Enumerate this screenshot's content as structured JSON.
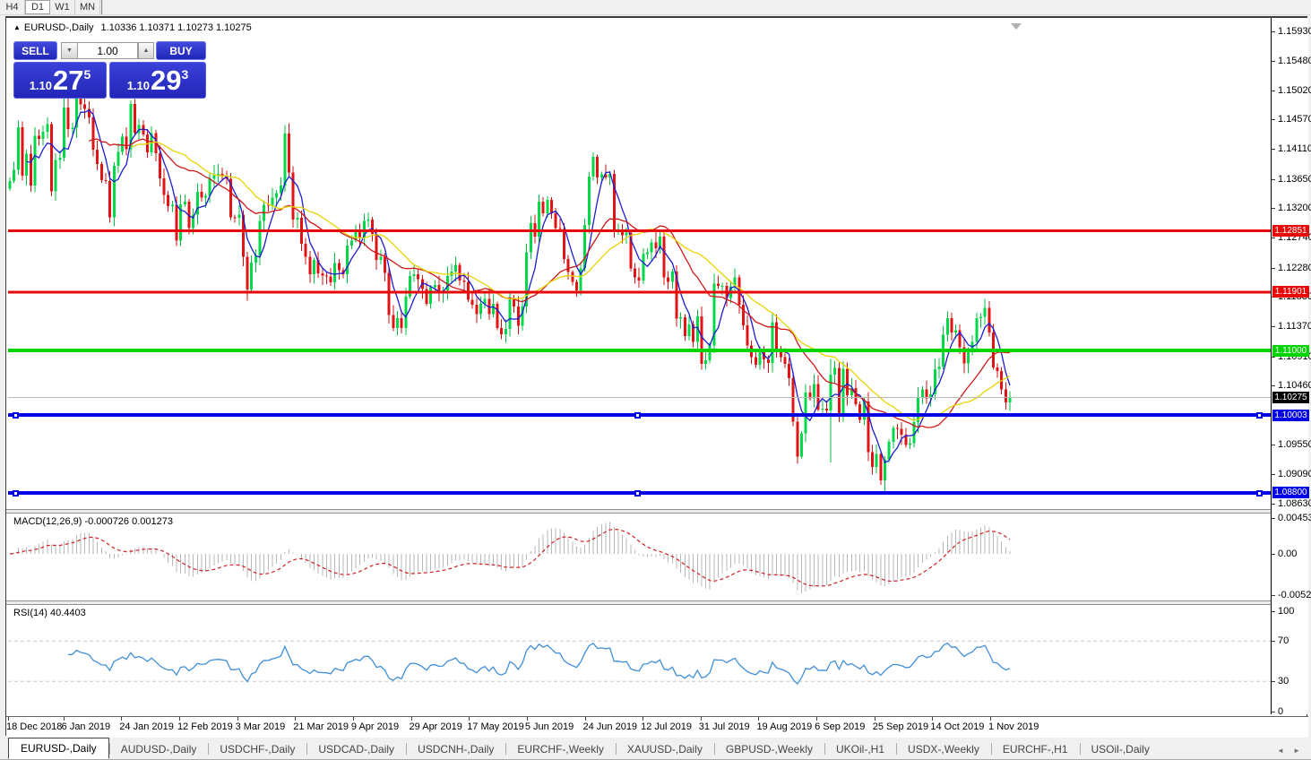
{
  "toolbar": {
    "timeframes": [
      {
        "label": "H4",
        "active": false
      },
      {
        "label": "D1",
        "active": true
      },
      {
        "label": "W1",
        "active": false
      },
      {
        "label": "MN",
        "active": false
      }
    ]
  },
  "chart": {
    "title": "EURUSD-,Daily",
    "ohlc": "1.10336 1.10371 1.10273 1.10275"
  },
  "trade": {
    "sell_label": "SELL",
    "buy_label": "BUY",
    "volume": "1.00",
    "spin_down": "▼",
    "spin_up": "▲",
    "sell_small": "1.10",
    "sell_big": "27",
    "sell_sup": "5",
    "buy_small": "1.10",
    "buy_big": "29",
    "buy_sup": "3"
  },
  "indicators": {
    "macd_label": "MACD(12,26,9) -0.000726 0.001273",
    "rsi_label": "RSI(14) 40.4403"
  },
  "tabs": [
    {
      "label": "EURUSD-,Daily",
      "active": true
    },
    {
      "label": "AUDUSD-,Daily",
      "active": false
    },
    {
      "label": "USDCHF-,Daily",
      "active": false
    },
    {
      "label": "USDCAD-,Daily",
      "active": false
    },
    {
      "label": "USDCNH-,Daily",
      "active": false
    },
    {
      "label": "EURCHF-,Weekly",
      "active": false
    },
    {
      "label": "XAUUSD-,Daily",
      "active": false
    },
    {
      "label": "GBPUSD-,Weekly",
      "active": false
    },
    {
      "label": "UKOil-,H1",
      "active": false
    },
    {
      "label": "USDX-,Weekly",
      "active": false
    },
    {
      "label": "EURCHF-,H1",
      "active": false
    },
    {
      "label": "USOil-,Daily",
      "active": false
    }
  ],
  "tab_arrows": "◄ ►",
  "colors": {
    "bull": "#00d84a",
    "bear": "#e01414",
    "wick_bull": "#00c040",
    "wick_bear": "#d01010",
    "macd_hist": "#b8b8b8",
    "macd_signal": "#d02020",
    "rsi_line": "#3f8ed8",
    "current_line": "#b8b8b8",
    "current_tag": "#000000"
  },
  "chart_data": {
    "type": "candlestick",
    "symbol": "EURUSD-",
    "timeframe": "Daily",
    "ohlc_display": {
      "open": "1.10336",
      "high": "1.10371",
      "low": "1.10273",
      "close": "1.10275"
    },
    "y_axis": {
      "range": [
        1.0855,
        1.1611
      ],
      "ticks": [
        "1.15930",
        "1.15480",
        "1.15020",
        "1.14570",
        "1.14110",
        "1.13650",
        "1.13200",
        "1.12740",
        "1.12280",
        "1.11830",
        "1.11370",
        "1.10910",
        "1.10460",
        "1.09550",
        "1.09090",
        "1.08630"
      ]
    },
    "x_axis": {
      "labels": [
        "18 Dec 2018",
        "6 Jan 2019",
        "24 Jan 2019",
        "12 Feb 2019",
        "3 Mar 2019",
        "21 Mar 2019",
        "9 Apr 2019",
        "29 Apr 2019",
        "17 May 2019",
        "5 Jun 2019",
        "24 Jun 2019",
        "12 Jul 2019",
        "31 Jul 2019",
        "19 Aug 2019",
        "6 Sep 2019",
        "25 Sep 2019",
        "14 Oct 2019",
        "1 Nov 2019"
      ]
    },
    "levels": [
      {
        "price": 1.12851,
        "label": "1.12851",
        "color": "#e80808",
        "thickness": 3,
        "handles": false
      },
      {
        "price": 1.11901,
        "label": "1.11901",
        "color": "#e80808",
        "thickness": 3,
        "handles": false
      },
      {
        "price": 1.11,
        "label": "1.11000",
        "color": "#00d400",
        "thickness": 4,
        "handles": false
      },
      {
        "price": 1.10003,
        "label": "1.10003",
        "color": "#0000e8",
        "thickness": 4,
        "handles": true
      },
      {
        "price": 1.088,
        "label": "1.08800",
        "color": "#0000e8",
        "thickness": 4,
        "handles": true
      }
    ],
    "current_price": {
      "price": 1.10275,
      "label": "1.10275"
    },
    "moving_averages": [
      {
        "period": 5,
        "color": "#1c1cd0"
      },
      {
        "period": 20,
        "color": "#d01818"
      },
      {
        "period": 30,
        "color": "#e8d400"
      }
    ],
    "closes": [
      1.1362,
      1.1379,
      1.1445,
      1.137,
      1.1404,
      1.1355,
      1.1432,
      1.1427,
      1.1438,
      1.145,
      1.1346,
      1.1394,
      1.1398,
      1.1475,
      1.1442,
      1.1444,
      1.15,
      1.148,
      1.1473,
      1.146,
      1.141,
      1.1388,
      1.1363,
      1.1362,
      1.1306,
      1.1385,
      1.1407,
      1.143,
      1.1411,
      1.1481,
      1.1436,
      1.1448,
      1.1434,
      1.1406,
      1.1436,
      1.1405,
      1.1366,
      1.134,
      1.1323,
      1.1325,
      1.127,
      1.1326,
      1.133,
      1.1289,
      1.131,
      1.1345,
      1.1336,
      1.1339,
      1.1365,
      1.1371,
      1.1373,
      1.137,
      1.1365,
      1.1306,
      1.1305,
      1.131,
      1.1245,
      1.1194,
      1.1236,
      1.1246,
      1.13,
      1.1325,
      1.1324,
      1.1336,
      1.1343,
      1.1355,
      1.1435,
      1.1375,
      1.1302,
      1.1305,
      1.1265,
      1.1245,
      1.1218,
      1.124,
      1.1219,
      1.1216,
      1.1214,
      1.1205,
      1.1235,
      1.1224,
      1.1218,
      1.1262,
      1.127,
      1.1283,
      1.1275,
      1.13,
      1.1302,
      1.128,
      1.124,
      1.1245,
      1.122,
      1.1155,
      1.1135,
      1.115,
      1.1135,
      1.1183,
      1.1215,
      1.1218,
      1.121,
      1.1195,
      1.1172,
      1.1198,
      1.1201,
      1.119,
      1.1193,
      1.1215,
      1.1222,
      1.1232,
      1.1208,
      1.1206,
      1.1178,
      1.1171,
      1.1156,
      1.1172,
      1.118,
      1.1156,
      1.1172,
      1.1135,
      1.1125,
      1.1133,
      1.1181,
      1.1168,
      1.1138,
      1.1168,
      1.1252,
      1.1297,
      1.1276,
      1.133,
      1.1312,
      1.1333,
      1.1312,
      1.1289,
      1.1288,
      1.1241,
      1.1221,
      1.1206,
      1.1193,
      1.1227,
      1.1294,
      1.1369,
      1.1399,
      1.1367,
      1.1372,
      1.1367,
      1.1373,
      1.1285,
      1.1286,
      1.1278,
      1.1282,
      1.1227,
      1.1213,
      1.1208,
      1.1249,
      1.1252,
      1.1267,
      1.1258,
      1.1276,
      1.1213,
      1.1206,
      1.1222,
      1.1149,
      1.1151,
      1.1122,
      1.114,
      1.1113,
      1.1153,
      1.1079,
      1.1085,
      1.1108,
      1.1203,
      1.12,
      1.12,
      1.1181,
      1.1199,
      1.1213,
      1.1171,
      1.1139,
      1.1108,
      1.109,
      1.1078,
      1.11,
      1.1086,
      1.1081,
      1.1144,
      1.1101,
      1.109,
      1.1079,
      1.1057,
      1.099,
      1.0936,
      1.0972,
      1.1035,
      1.1026,
      1.1048,
      1.1009,
      1.101,
      1.1007,
      1.1063,
      1.1073,
      1.1003,
      1.1072,
      1.1031,
      1.1042,
      1.1017,
      1.0993,
      1.1021,
      1.0943,
      1.092,
      1.094,
      1.0899,
      1.0932,
      1.0959,
      1.098,
      1.0979,
      1.097,
      1.0954,
      1.0957,
      1.0989,
      1.1028,
      1.104,
      1.1026,
      1.1032,
      1.1071,
      1.1075,
      1.1124,
      1.115,
      1.1128,
      1.1131,
      1.1105,
      1.108,
      1.1099,
      1.1113,
      1.115,
      1.1152,
      1.1166,
      1.1128,
      1.1074,
      1.1068,
      1.104,
      1.102,
      1.10275
    ],
    "wick_overrides": {
      "13": {
        "h": 1.149
      },
      "16": {
        "h": 1.1514
      },
      "57": {
        "l": 1.1177
      },
      "66": {
        "h": 1.1448
      },
      "189": {
        "l": 1.0925
      },
      "197": {
        "h": 1.1087,
        "l": 1.0927
      },
      "210": {
        "l": 1.0879
      },
      "240": {
        "h": 1.1037
      }
    },
    "macd": {
      "name": "MACD",
      "params": [
        12,
        26,
        9
      ],
      "value": -0.000726,
      "signal_value": 0.001273,
      "axis_ticks": [
        "0.004536",
        "0.00",
        "-0.005205"
      ],
      "range": [
        -0.00585,
        0.00505
      ]
    },
    "rsi": {
      "name": "RSI",
      "period": 14,
      "value": 40.4403,
      "axis_ticks": [
        "100",
        "70",
        "30",
        "0"
      ],
      "levels": [
        30,
        70
      ]
    }
  }
}
